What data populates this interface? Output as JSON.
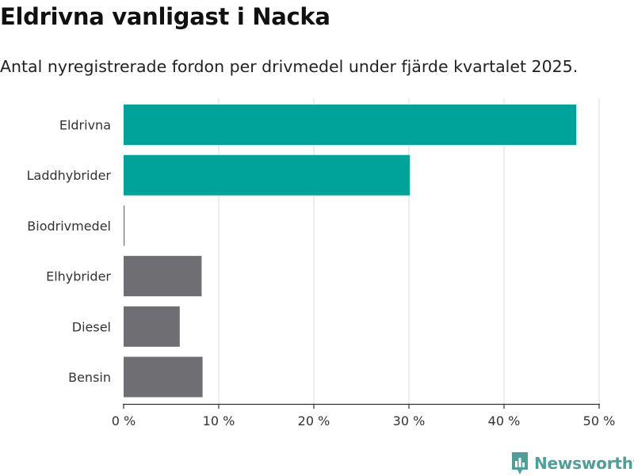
{
  "title": "Eldrivna vanligast i Nacka",
  "subtitle": "Antal nyregistrerade fordon per drivmedel under fjärde kvartalet 2025.",
  "brand": {
    "name": "Newsworthy",
    "icon": "newsworthy-logo-icon",
    "color": "#4d9f97"
  },
  "colors": {
    "highlight": "#00a398",
    "other": "#6f6e73",
    "grid": "#dddddd",
    "axis": "#333333"
  },
  "chart_data": {
    "type": "bar",
    "orientation": "horizontal",
    "categories": [
      "Eldrivna",
      "Laddhybrider",
      "Biodrivmedel",
      "Elhybrider",
      "Diesel",
      "Bensin"
    ],
    "values": [
      47.6,
      30.1,
      0.1,
      8.2,
      5.9,
      8.3
    ],
    "highlight": [
      true,
      true,
      false,
      false,
      false,
      false
    ],
    "xlim": [
      0,
      50
    ],
    "xticks": [
      0,
      10,
      20,
      30,
      40,
      50
    ],
    "xtick_labels": [
      "0 %",
      "10 %",
      "20 %",
      "30 %",
      "40 %",
      "50 %"
    ],
    "xlabel": "",
    "ylabel": "",
    "grid": true,
    "legend": "none"
  }
}
